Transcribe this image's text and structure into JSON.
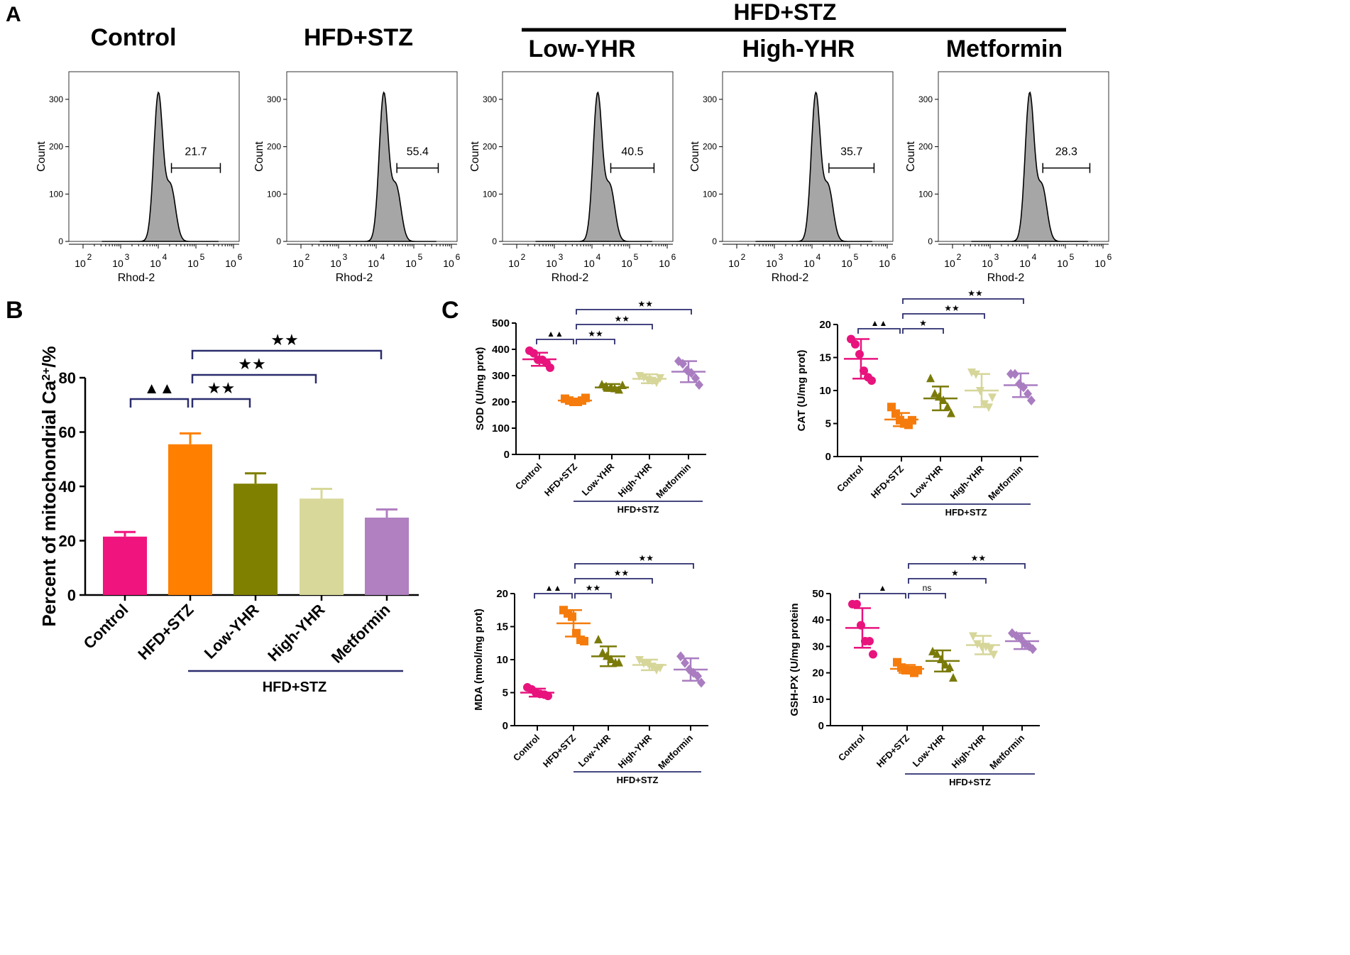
{
  "panel_labels": {
    "a": "A",
    "b": "B",
    "c": "C"
  },
  "chart_data": [
    {
      "type": "histogram",
      "group_header": "HFD+STZ",
      "xlabel": "Rhod-2",
      "ylabel": "Count",
      "yticks": [
        "0",
        "100",
        "200",
        "300"
      ],
      "xtick_base": "10",
      "xtick_exponents": [
        "2",
        "3",
        "4",
        "5",
        "6"
      ],
      "ylim": [
        0,
        330
      ],
      "xlim_log10": [
        1.6,
        6.1
      ],
      "panels": [
        {
          "title": "Control",
          "gate_value": "21.7",
          "peak_log10": 4.0
        },
        {
          "title": "HFD+STZ",
          "gate_value": "55.4",
          "peak_log10": 4.2
        },
        {
          "title": "Low-YHR",
          "gate_value": "40.5",
          "peak_log10": 4.15
        },
        {
          "title": "High-YHR",
          "gate_value": "35.7",
          "peak_log10": 4.1
        },
        {
          "title": "Metformin",
          "gate_value": "28.3",
          "peak_log10": 4.05
        }
      ]
    },
    {
      "type": "bar",
      "categories": [
        "Control",
        "HFD+STZ",
        "Low-YHR",
        "High-YHR",
        "Metformin"
      ],
      "values": [
        21.5,
        55.5,
        41,
        35.5,
        28.5
      ],
      "errors": [
        1.7,
        4,
        3.8,
        3.6,
        3
      ],
      "colors": [
        "#f0157e",
        "#ff7f00",
        "#808000",
        "#d8d89a",
        "#b080c0"
      ],
      "ylabel": "Percent of mitochondrial Ca",
      "ylabel_sup": "2+",
      "ylabel_suffix": "/%",
      "yticks": [
        "0",
        "20",
        "40",
        "60",
        "80"
      ],
      "ylim": [
        0,
        80
      ],
      "group_label": "HFD+STZ",
      "significance": [
        {
          "from": 0,
          "to": 1,
          "label": "▲▲",
          "level": 0
        },
        {
          "from": 1,
          "to": 2,
          "label": "★★",
          "level": 0
        },
        {
          "from": 1,
          "to": 3,
          "label": "★★",
          "level": 1
        },
        {
          "from": 1,
          "to": 4,
          "label": "★★",
          "level": 2
        }
      ]
    },
    {
      "type": "scatter",
      "categories": [
        "Control",
        "HFD+STZ",
        "Low-YHR",
        "High-YHR",
        "Metformin"
      ],
      "colors": [
        "#e8137d",
        "#f57c0c",
        "#7a7a0a",
        "#d6d69a",
        "#a97dc0"
      ],
      "markers": [
        "circle",
        "square",
        "triangle-up",
        "triangle-down",
        "diamond"
      ],
      "group_label": "HFD+STZ",
      "panels": [
        {
          "ylabel": "SOD (U/mg prot)",
          "ylim": [
            0,
            500
          ],
          "yticks": [
            "0",
            "100",
            "200",
            "300",
            "400",
            "500"
          ],
          "means": [
            362,
            205,
            255,
            288,
            315
          ],
          "sd": [
            25,
            8,
            13,
            17,
            40
          ],
          "points": [
            [
              395,
              385,
              360,
              360,
              348,
              330
            ],
            [
              212,
              205,
              200,
              200,
              205,
              215
            ],
            [
              265,
              258,
              252,
              250,
              245,
              262
            ],
            [
              300,
              295,
              285,
              282,
              275,
              292
            ],
            [
              355,
              345,
              320,
              310,
              290,
              265
            ]
          ],
          "significance": [
            {
              "from": 0,
              "to": 1,
              "label": "▲▲",
              "level": 0
            },
            {
              "from": 1,
              "to": 2,
              "label": "★★",
              "level": 0
            },
            {
              "from": 1,
              "to": 3,
              "label": "★★",
              "level": 1
            },
            {
              "from": 1,
              "to": 4,
              "label": "★★",
              "level": 2
            }
          ]
        },
        {
          "ylabel": "CAT (U/mg prot)",
          "ylim": [
            0,
            20
          ],
          "yticks": [
            "0",
            "5",
            "10",
            "15",
            "20"
          ],
          "means": [
            14.8,
            5.6,
            8.8,
            10,
            10.8
          ],
          "sd": [
            3,
            1,
            1.8,
            2.5,
            1.8
          ],
          "points": [
            [
              17.8,
              17,
              15.5,
              13,
              12,
              11.5
            ],
            [
              7.5,
              6.5,
              5.5,
              5,
              4.8,
              5.5
            ],
            [
              11.8,
              9.5,
              9,
              8.5,
              7.5,
              6.5
            ],
            [
              12.8,
              12.5,
              10,
              8,
              7.5,
              9
            ],
            [
              12.5,
              12.5,
              11,
              10.5,
              9.5,
              8.5
            ]
          ],
          "significance": [
            {
              "from": 0,
              "to": 1,
              "label": "▲▲",
              "level": 0
            },
            {
              "from": 1,
              "to": 2,
              "label": "★",
              "level": 0
            },
            {
              "from": 1,
              "to": 3,
              "label": "★★",
              "level": 1
            },
            {
              "from": 1,
              "to": 4,
              "label": "★★",
              "level": 2
            }
          ]
        },
        {
          "ylabel": "MDA (nmol/mg prot)",
          "ylim": [
            0,
            20
          ],
          "yticks": [
            "0",
            "5",
            "10",
            "15",
            "20"
          ],
          "means": [
            5,
            15.5,
            10.5,
            9.2,
            8.5
          ],
          "sd": [
            0.6,
            2,
            1.5,
            0.8,
            1.7
          ],
          "points": [
            [
              5.8,
              5.5,
              5,
              4.8,
              4.7,
              4.5
            ],
            [
              17.5,
              17,
              16.5,
              14,
              13,
              12.8
            ],
            [
              13,
              11,
              10.5,
              10,
              9.5,
              9.5
            ],
            [
              10,
              9.5,
              9.5,
              9,
              8.5,
              8.8
            ],
            [
              10.5,
              9.5,
              8.5,
              8,
              7.5,
              6.5
            ]
          ],
          "significance": [
            {
              "from": 0,
              "to": 1,
              "label": "▲▲",
              "level": 0
            },
            {
              "from": 1,
              "to": 2,
              "label": "★★",
              "level": 0
            },
            {
              "from": 1,
              "to": 3,
              "label": "★★",
              "level": 1
            },
            {
              "from": 1,
              "to": 4,
              "label": "★★",
              "level": 2
            }
          ]
        },
        {
          "ylabel": "GSH-PX (U/mg protein",
          "ylim": [
            0,
            50
          ],
          "yticks": [
            "0",
            "10",
            "20",
            "30",
            "40",
            "50"
          ],
          "means": [
            37,
            21.5,
            24.5,
            30.5,
            32
          ],
          "sd": [
            7.5,
            1.5,
            4,
            3.5,
            3
          ],
          "points": [
            [
              46,
              46,
              38,
              32,
              32,
              27
            ],
            [
              24,
              22,
              21,
              21,
              20,
              21
            ],
            [
              28,
              27,
              25,
              23,
              22,
              18
            ],
            [
              34,
              31,
              30,
              30,
              29,
              27
            ],
            [
              35,
              34,
              33,
              31,
              30,
              29
            ]
          ],
          "significance": [
            {
              "from": 0,
              "to": 1,
              "label": "▲",
              "level": 0
            },
            {
              "from": 1,
              "to": 2,
              "label": "ns",
              "level": 0
            },
            {
              "from": 1,
              "to": 3,
              "label": "★",
              "level": 1
            },
            {
              "from": 1,
              "to": 4,
              "label": "★★",
              "level": 2
            }
          ]
        }
      ]
    }
  ]
}
